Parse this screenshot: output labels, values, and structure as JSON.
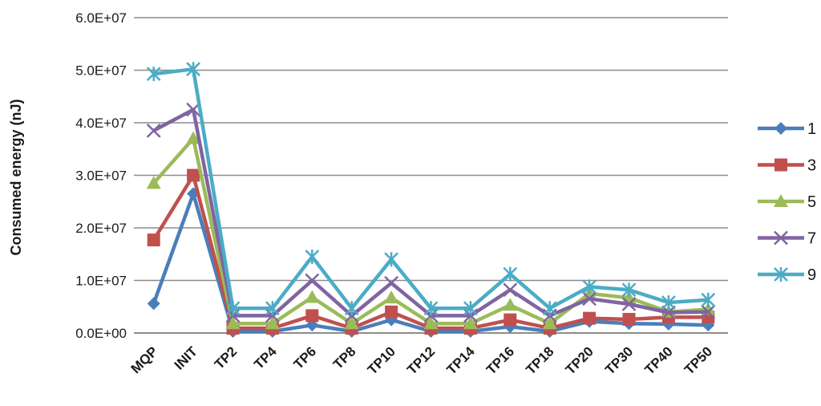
{
  "chart_data": {
    "type": "line",
    "title": "",
    "xlabel": "",
    "ylabel": "Consumed energy (nJ)",
    "ylim": [
      0,
      60000000
    ],
    "yticks": [
      "0.0E+00",
      "1.0E+07",
      "2.0E+07",
      "3.0E+07",
      "4.0E+07",
      "5.0E+07",
      "6.0E+07"
    ],
    "grid": true,
    "legend": "right",
    "categories": [
      "MQP",
      "INIT",
      "TP2",
      "TP4",
      "TP6",
      "TP8",
      "TP10",
      "TP12",
      "TP14",
      "TP16",
      "TP18",
      "TP20",
      "TP30",
      "TP40",
      "TP50"
    ],
    "series": [
      {
        "name": "1",
        "color": "#4a7ebb",
        "marker": "diamond",
        "values": [
          5600000,
          26500000,
          300000,
          300000,
          1500000,
          300000,
          2500000,
          300000,
          300000,
          1200000,
          300000,
          2200000,
          1800000,
          1700000,
          1500000
        ]
      },
      {
        "name": "3",
        "color": "#c0504d",
        "marker": "square",
        "values": [
          17700000,
          30000000,
          900000,
          900000,
          3300000,
          900000,
          4000000,
          900000,
          900000,
          2500000,
          900000,
          2800000,
          2600000,
          3000000,
          3000000
        ]
      },
      {
        "name": "5",
        "color": "#9bbb59",
        "marker": "triangle",
        "values": [
          28500000,
          37000000,
          1800000,
          1800000,
          6800000,
          1800000,
          6700000,
          1800000,
          1800000,
          5300000,
          1800000,
          7500000,
          6700000,
          4000000,
          4500000
        ]
      },
      {
        "name": "7",
        "color": "#8064a2",
        "marker": "x",
        "values": [
          38500000,
          42500000,
          3300000,
          3300000,
          10000000,
          3300000,
          9500000,
          3300000,
          3300000,
          8200000,
          3300000,
          6500000,
          5500000,
          3900000,
          4000000
        ]
      },
      {
        "name": "9",
        "color": "#4bacc6",
        "marker": "star",
        "values": [
          49300000,
          50200000,
          4700000,
          4700000,
          14500000,
          4700000,
          14000000,
          4700000,
          4700000,
          11200000,
          4700000,
          8800000,
          8200000,
          5800000,
          6300000
        ]
      }
    ]
  }
}
